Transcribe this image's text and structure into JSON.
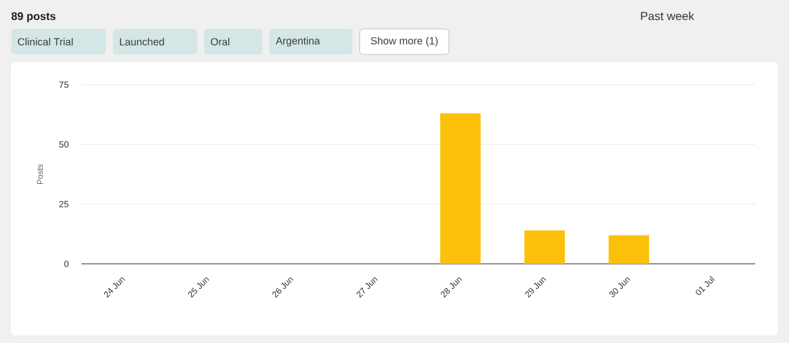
{
  "chart_data": {
    "type": "bar",
    "title": "89 posts",
    "ylabel": "Posts",
    "categories": [
      "24 Jun",
      "25 Jun",
      "26 Jun",
      "27 Jun",
      "28 Jun",
      "29 Jun",
      "30 Jun",
      "01 Jul"
    ],
    "values": [
      0,
      0,
      0,
      0,
      63,
      14,
      12,
      0
    ],
    "color": "#fdc00a",
    "ylim": [
      0,
      75
    ],
    "yticks": [
      0,
      25,
      50,
      75
    ],
    "grid": "y",
    "annotations": [
      "Clinical Trial",
      "Launched",
      "Oral",
      "Argentina",
      "Show more (1)",
      "Past week"
    ]
  }
}
